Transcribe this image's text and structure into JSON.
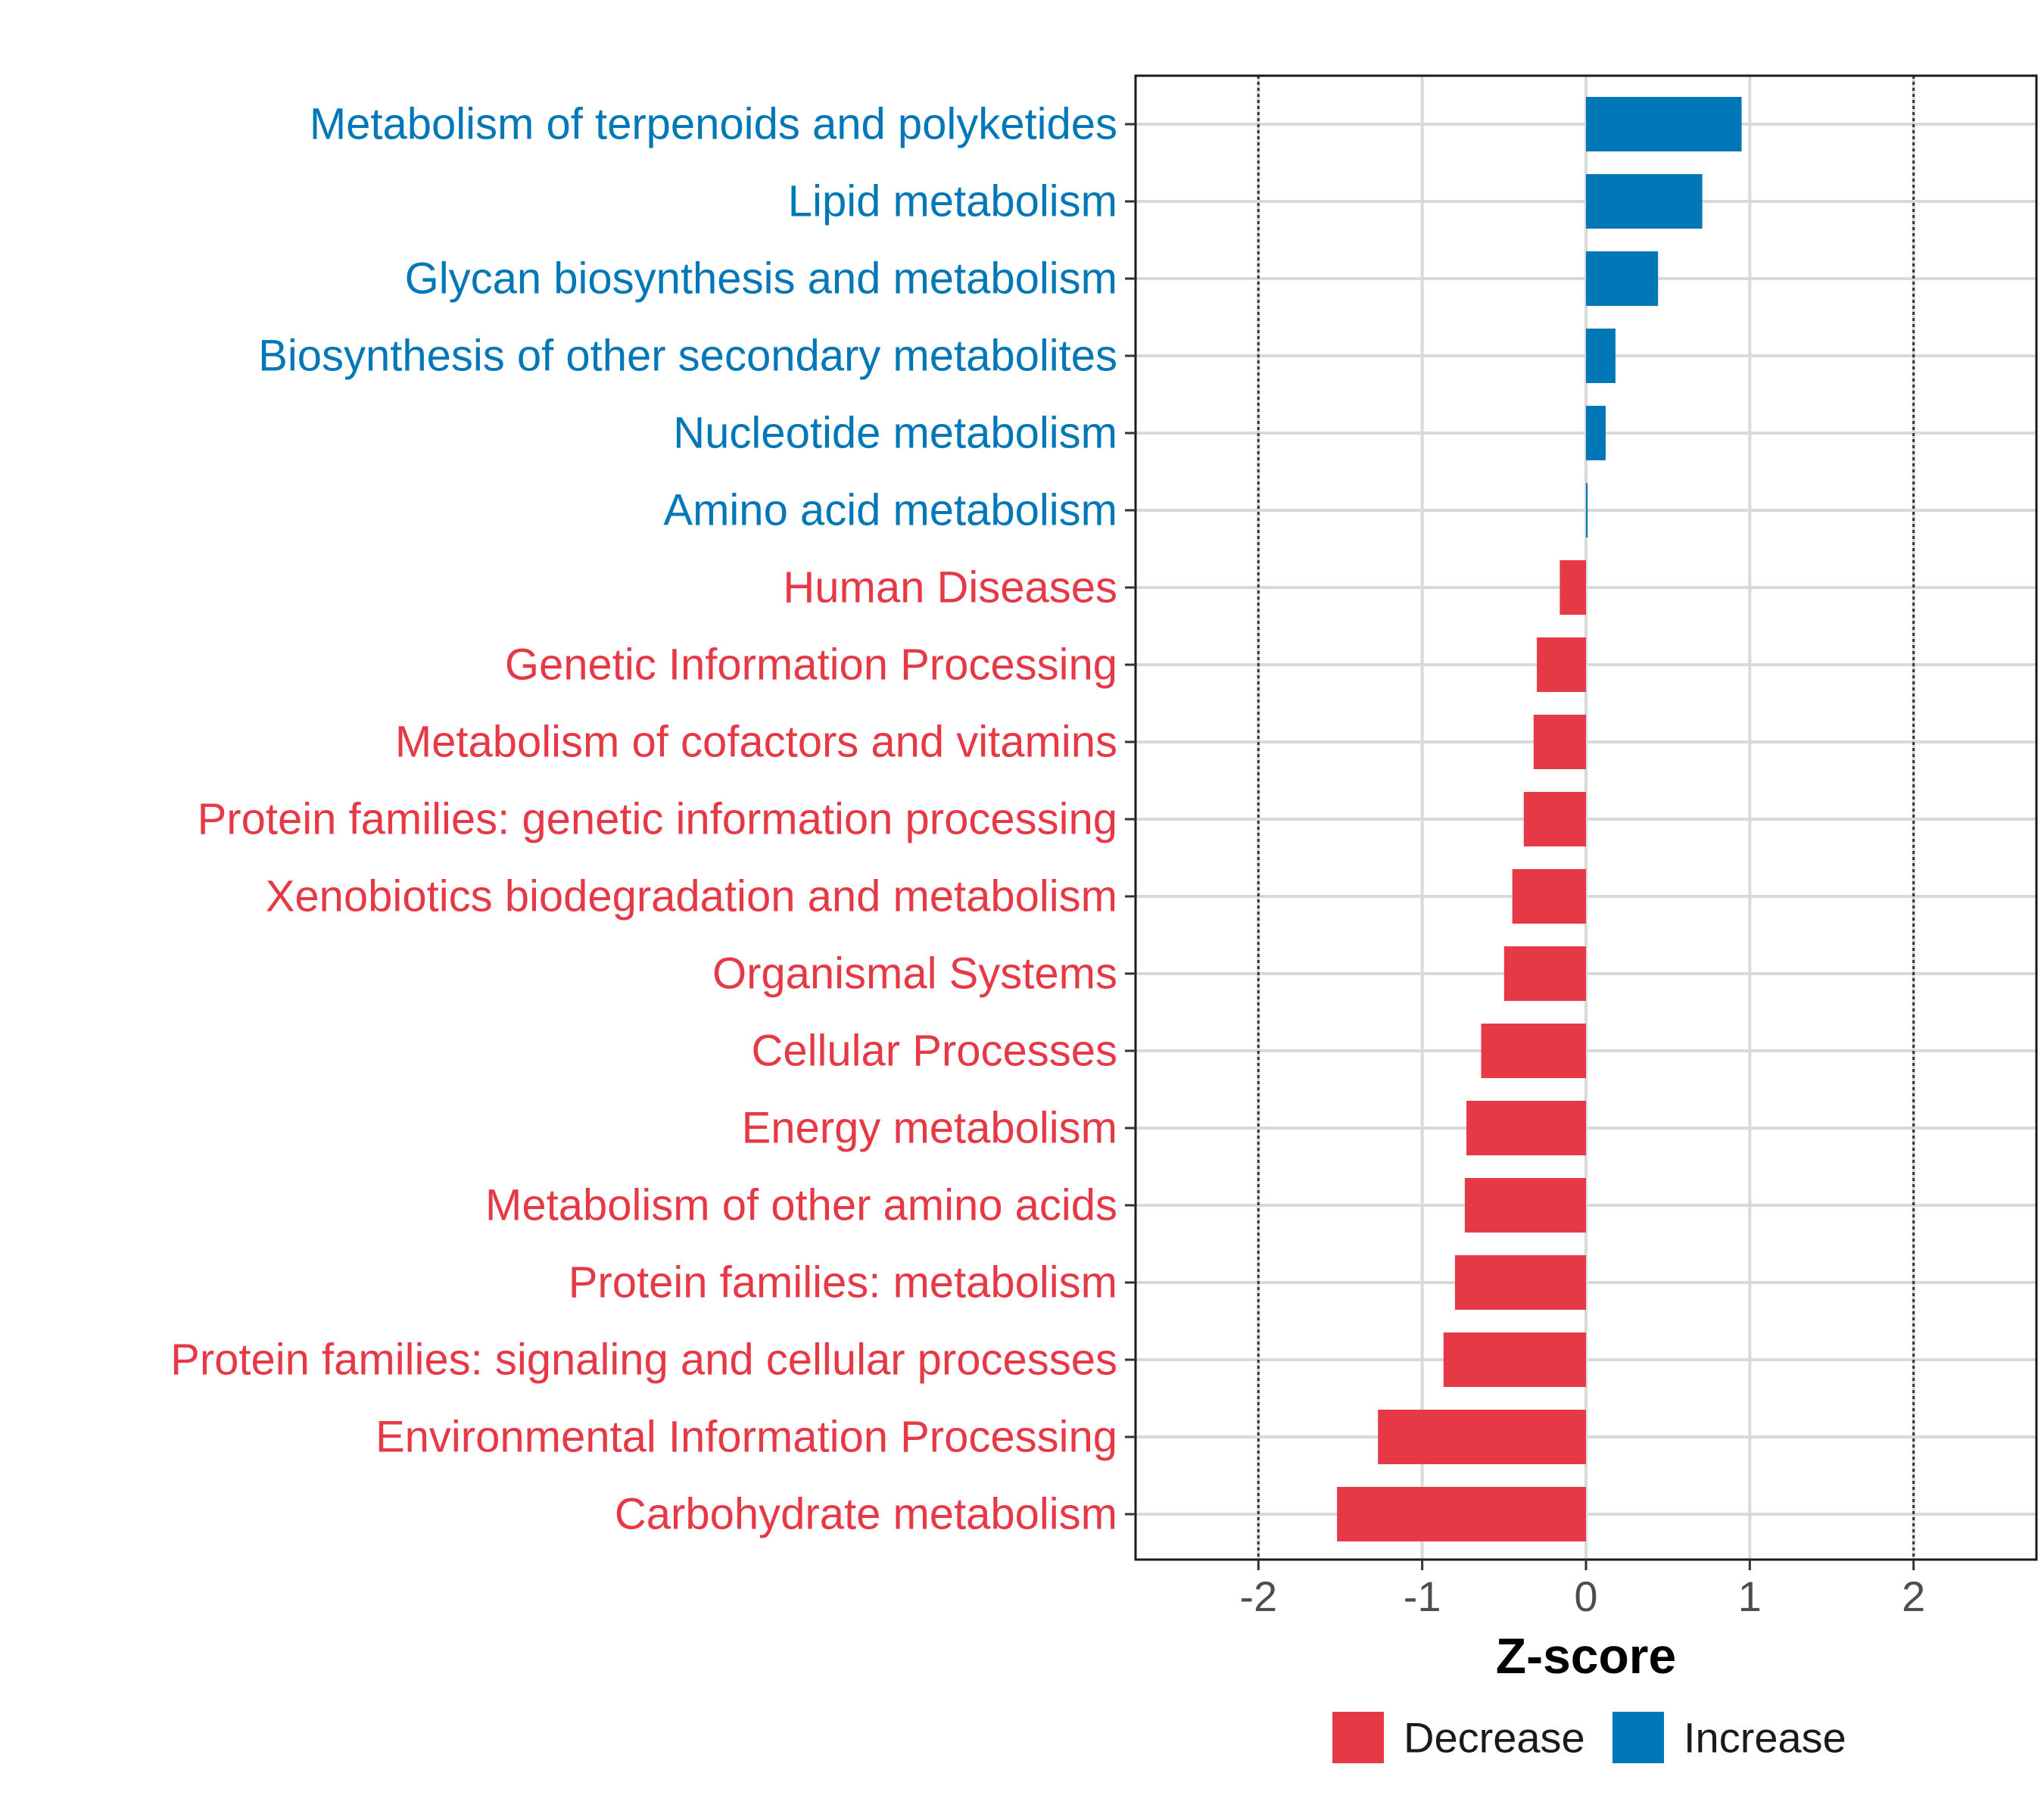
{
  "chart_data": {
    "type": "bar",
    "orientation": "horizontal",
    "categories": [
      "Metabolism of terpenoids and polyketides",
      "Lipid metabolism",
      "Glycan biosynthesis and metabolism",
      "Biosynthesis of other secondary metabolites",
      "Nucleotide metabolism",
      "Amino acid metabolism",
      "Human Diseases",
      "Genetic Information Processing",
      "Metabolism of cofactors and vitamins",
      "Protein families: genetic information processing",
      "Xenobiotics biodegradation and metabolism",
      "Organismal Systems",
      "Cellular Processes",
      "Energy metabolism",
      "Metabolism of other amino acids",
      "Protein families: metabolism",
      "Protein families: signaling and cellular processes",
      "Environmental Information Processing",
      "Carbohydrate metabolism"
    ],
    "values": [
      0.95,
      0.71,
      0.44,
      0.18,
      0.12,
      0.01,
      -0.16,
      -0.3,
      -0.32,
      -0.38,
      -0.45,
      -0.5,
      -0.64,
      -0.73,
      -0.74,
      -0.8,
      -0.87,
      -1.27,
      -1.52
    ],
    "groups": [
      "Increase",
      "Increase",
      "Increase",
      "Increase",
      "Increase",
      "Increase",
      "Decrease",
      "Decrease",
      "Decrease",
      "Decrease",
      "Decrease",
      "Decrease",
      "Decrease",
      "Decrease",
      "Decrease",
      "Decrease",
      "Decrease",
      "Decrease",
      "Decrease"
    ],
    "xlabel": "Z-score",
    "xlim": [
      -2.75,
      2.75
    ],
    "xticks": [
      -2,
      -1,
      0,
      1,
      2
    ],
    "xtick_labels": [
      "-2",
      "-1",
      "0",
      "1",
      "2"
    ],
    "reference_lines": [
      -2,
      2
    ],
    "grid": true,
    "legend": {
      "position": "bottom",
      "items": [
        {
          "label": "Decrease",
          "color": "#E63946"
        },
        {
          "label": "Increase",
          "color": "#0077B6"
        }
      ]
    },
    "colors": {
      "Decrease": "#E63946",
      "Increase": "#0077B6"
    }
  }
}
